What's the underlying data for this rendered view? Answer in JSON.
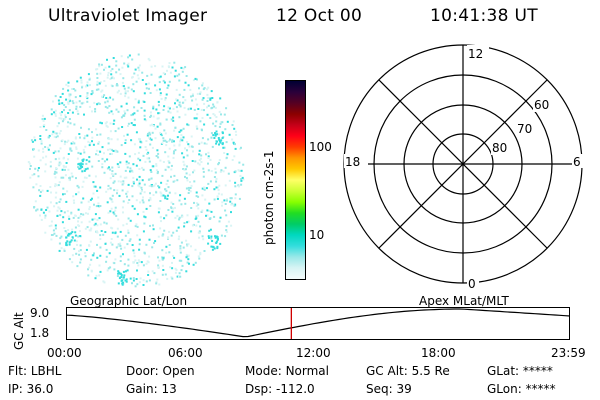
{
  "header": {
    "instrument": "Ultraviolet Imager",
    "date": "12 Oct 00",
    "time": "10:41:38 UT"
  },
  "colorbar": {
    "unit_label": "photon cm-2s-1",
    "tick_labels": [
      "100",
      "10"
    ],
    "colors": [
      "#000033",
      "#2a003a",
      "#550022",
      "#8b0000",
      "#c40018",
      "#ff0018",
      "#ff3c00",
      "#ff9600",
      "#ffc800",
      "#ffff66",
      "#ccff33",
      "#88ff00",
      "#22dd22",
      "#00cc66",
      "#00d8c0",
      "#33dddd",
      "#99e8e8",
      "#d8f4f4",
      "#f4fbfb"
    ]
  },
  "polar_grid": {
    "mlt_labels": {
      "top": "12",
      "left": "18",
      "right": "6",
      "bottom": "0"
    },
    "lat_labels": [
      "60",
      "70",
      "80"
    ]
  },
  "orbit_plot": {
    "left_title": "Geographic Lat/Lon",
    "right_title": "Apex MLat/MLT",
    "y_axis_label": "GC Alt",
    "y_ticks": [
      "9.0",
      "1.8"
    ],
    "x_ticks": [
      "00:00",
      "06:00",
      "12:00",
      "18:00",
      "23:59"
    ],
    "current_time_fraction": 0.446,
    "curve_color": "#000000",
    "marker_color": "#d00000"
  },
  "status": {
    "row1": [
      {
        "label": "Flt:",
        "value": "LBHL"
      },
      {
        "label": "Door:",
        "value": "Open"
      },
      {
        "label": "Mode:",
        "value": "Normal"
      },
      {
        "label": "GC Alt:",
        "value": "5.5 Re"
      },
      {
        "label": "GLat:",
        "value": "*****"
      }
    ],
    "row2": [
      {
        "label": "IP:",
        "value": "36.0"
      },
      {
        "label": "Gain:",
        "value": "13"
      },
      {
        "label": "Dsp:",
        "value": "-112.0"
      },
      {
        "label": "Seq:",
        "value": "39"
      },
      {
        "label": "GLon:",
        "value": "*****"
      }
    ]
  },
  "image_colors": {
    "speckle_cyan": "#33dddd",
    "speckle_pale": "#99e8e8",
    "speckle_light": "#d8f4f4"
  }
}
